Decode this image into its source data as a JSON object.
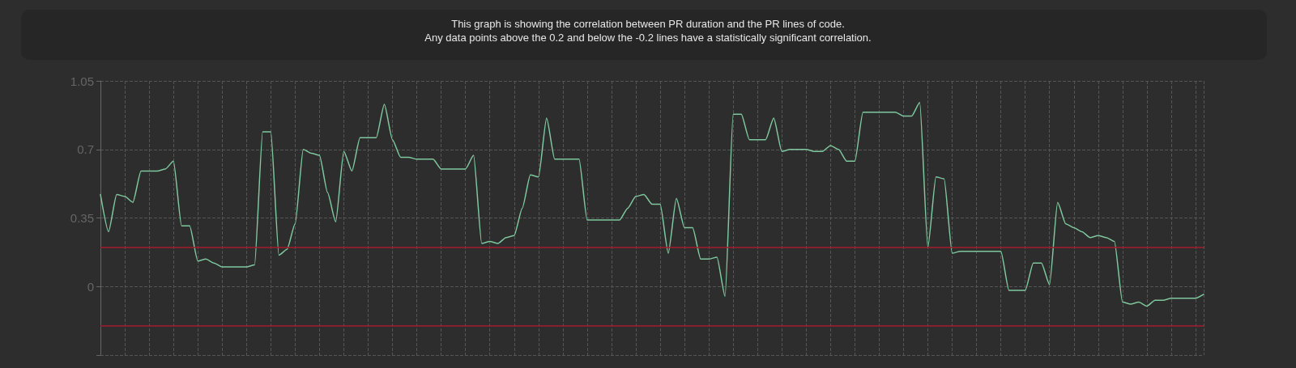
{
  "chart_data": {
    "type": "line",
    "title": "This graph is showing the correlation between PR duration and the PR lines of code.",
    "subtitle": "Any data points above the 0.2 and below the -0.2 lines have a statistically significant correlation.",
    "categories": [
      null,
      null,
      null,
      null,
      null,
      null,
      null,
      null,
      null,
      null,
      null,
      null,
      null,
      null,
      null,
      null,
      null,
      null,
      null,
      null,
      null,
      null,
      null,
      null,
      null,
      null,
      null,
      null,
      null,
      null,
      null,
      null,
      null,
      null,
      null,
      null,
      null,
      null,
      null,
      null,
      null,
      null,
      null,
      null,
      null,
      null,
      null,
      null,
      null,
      null,
      null,
      null,
      null,
      null,
      null,
      null,
      null,
      null,
      null,
      null,
      null,
      null,
      null,
      null,
      null,
      null,
      null,
      null,
      null,
      null,
      null,
      null,
      null,
      null,
      null,
      null,
      null,
      null,
      null,
      null,
      null,
      null,
      null,
      null,
      null,
      null,
      null,
      null,
      null,
      null,
      null,
      null,
      null,
      null,
      null,
      null,
      null,
      null,
      null,
      null,
      null,
      null,
      null,
      null,
      null,
      null,
      null,
      null,
      null,
      null,
      null,
      null,
      null,
      null,
      null,
      null,
      null,
      null,
      null,
      null,
      null,
      null,
      null,
      null,
      null,
      null,
      null,
      null,
      null,
      null,
      null,
      null,
      null,
      null,
      null,
      null,
      null
    ],
    "series": [
      {
        "color": "#7fc79e",
        "values": [
          0.47,
          0.28,
          0.47,
          0.46,
          0.43,
          0.59,
          0.59,
          0.59,
          0.6,
          0.64,
          0.31,
          0.31,
          0.13,
          0.14,
          0.12,
          0.1,
          0.1,
          0.1,
          0.1,
          0.11,
          0.79,
          0.79,
          0.16,
          0.19,
          0.32,
          0.7,
          0.68,
          0.67,
          0.48,
          0.33,
          0.69,
          0.59,
          0.76,
          0.76,
          0.76,
          0.93,
          0.75,
          0.66,
          0.66,
          0.65,
          0.65,
          0.65,
          0.6,
          0.6,
          0.6,
          0.6,
          0.67,
          0.22,
          0.23,
          0.22,
          0.25,
          0.26,
          0.4,
          0.57,
          0.56,
          0.86,
          0.65,
          0.65,
          0.65,
          0.65,
          0.34,
          0.34,
          0.34,
          0.34,
          0.34,
          0.4,
          0.46,
          0.47,
          0.42,
          0.42,
          0.17,
          0.45,
          0.3,
          0.3,
          0.14,
          0.14,
          0.15,
          -0.05,
          0.88,
          0.88,
          0.75,
          0.75,
          0.75,
          0.86,
          0.69,
          0.7,
          0.7,
          0.7,
          0.69,
          0.69,
          0.72,
          0.7,
          0.64,
          0.64,
          0.89,
          0.89,
          0.89,
          0.89,
          0.89,
          0.87,
          0.87,
          0.94,
          0.2,
          0.56,
          0.55,
          0.17,
          0.18,
          0.18,
          0.18,
          0.18,
          0.18,
          0.18,
          -0.02,
          -0.02,
          -0.02,
          0.12,
          0.12,
          0.01,
          0.43,
          0.32,
          0.3,
          0.28,
          0.25,
          0.26,
          0.25,
          0.23,
          -0.08,
          -0.09,
          -0.08,
          -0.1,
          -0.07,
          -0.07,
          -0.06,
          -0.06,
          -0.06,
          -0.06,
          -0.04
        ]
      }
    ],
    "ylim": [
      -0.35,
      1.05
    ],
    "yticks": [
      {
        "value": -0.35,
        "label": null
      },
      0,
      0.35,
      0.7,
      1.05
    ],
    "ref_lines": [
      {
        "axis": "y",
        "value": 0.2,
        "color": "#a51d2d"
      },
      {
        "axis": "y",
        "value": -0.2,
        "color": "#a51d2d"
      }
    ],
    "grid": true,
    "tick_labels": "y",
    "marker": "none",
    "line_style": "solid"
  }
}
